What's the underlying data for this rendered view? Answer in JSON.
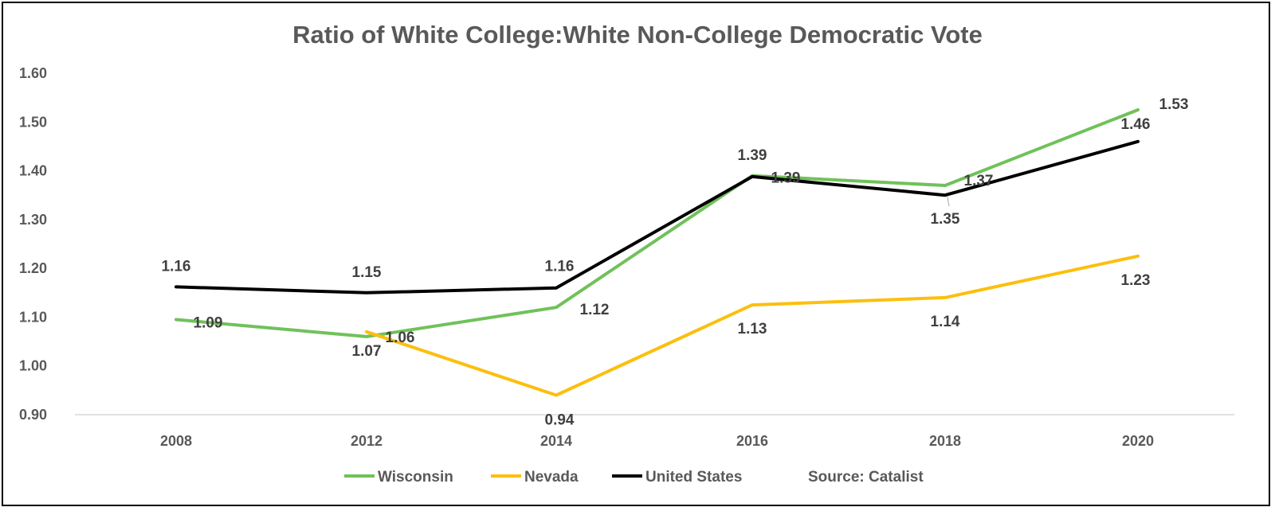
{
  "chart_data": {
    "type": "line",
    "title": "Ratio of White College:White Non-College Democratic Vote",
    "categories": [
      "2008",
      "2012",
      "2014",
      "2016",
      "2018",
      "2020"
    ],
    "ylim": [
      0.9,
      1.6
    ],
    "yticks": [
      "0.90",
      "1.00",
      "1.10",
      "1.20",
      "1.30",
      "1.40",
      "1.50",
      "1.60"
    ],
    "grid": false,
    "legend_position": "bottom",
    "series": [
      {
        "name": "Wisconsin",
        "color": "#70c15a",
        "values": [
          1.095,
          1.06,
          1.12,
          1.39,
          1.37,
          1.525
        ],
        "labels": [
          "1.09",
          "1.06",
          "1.12",
          "1.39",
          "1.37",
          "1.53"
        ]
      },
      {
        "name": "Nevada",
        "color": "#fcbf0e",
        "values": [
          null,
          1.07,
          0.94,
          1.125,
          1.14,
          1.225
        ],
        "labels": [
          null,
          "1.07",
          "0.94",
          "1.13",
          "1.14",
          "1.23"
        ]
      },
      {
        "name": "United States",
        "color": "#000000",
        "values": [
          1.162,
          1.15,
          1.16,
          1.388,
          1.35,
          1.46
        ],
        "labels": [
          "1.16",
          "1.15",
          "1.16",
          "1.39",
          "1.35",
          "1.46"
        ]
      }
    ],
    "annotation": "Source: Catalist"
  }
}
